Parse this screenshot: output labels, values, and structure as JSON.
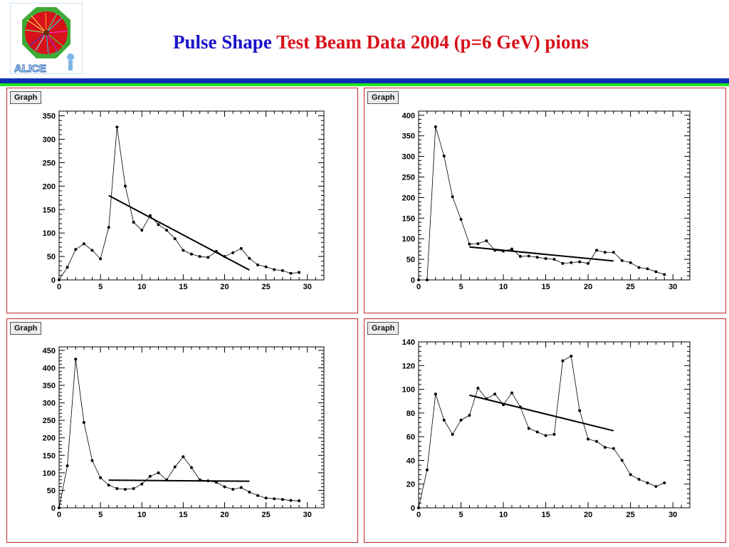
{
  "header": {
    "title_part1": "Pulse Shape",
    "title_part2": "Test Beam Data 2004 (p=6 GeV) pions",
    "logo_text": "ALICE"
  },
  "panels": [
    {
      "button_label": "Graph"
    },
    {
      "button_label": "Graph"
    },
    {
      "button_label": "Graph"
    },
    {
      "button_label": "Graph"
    }
  ],
  "chart_data": [
    {
      "type": "line",
      "title": "",
      "xlim": [
        0,
        32
      ],
      "ylim": [
        0,
        360
      ],
      "xticks": [
        0,
        5,
        10,
        15,
        20,
        25,
        30
      ],
      "yticks": [
        0,
        50,
        100,
        150,
        200,
        250,
        300,
        350
      ],
      "x": [
        0,
        1,
        2,
        3,
        4,
        5,
        6,
        7,
        8,
        9,
        10,
        11,
        12,
        13,
        14,
        15,
        16,
        17,
        18,
        19,
        20,
        21,
        22,
        23,
        24,
        25,
        26,
        27,
        28,
        29
      ],
      "y": [
        0,
        27,
        65,
        77,
        63,
        45,
        112,
        326,
        200,
        123,
        106,
        137,
        118,
        106,
        88,
        63,
        55,
        50,
        48,
        61,
        50,
        58,
        67,
        46,
        32,
        28,
        22,
        20,
        14,
        16
      ],
      "fit": {
        "x": [
          6,
          23
        ],
        "y": [
          180,
          21
        ]
      }
    },
    {
      "type": "line",
      "title": "",
      "xlim": [
        0,
        32
      ],
      "ylim": [
        0,
        410
      ],
      "xticks": [
        0,
        5,
        10,
        15,
        20,
        25,
        30
      ],
      "yticks": [
        0,
        50,
        100,
        150,
        200,
        250,
        300,
        350,
        400
      ],
      "x": [
        0,
        1,
        2,
        3,
        4,
        5,
        6,
        7,
        8,
        9,
        10,
        11,
        12,
        13,
        14,
        15,
        16,
        17,
        18,
        19,
        20,
        21,
        22,
        23,
        24,
        25,
        26,
        27,
        28,
        29
      ],
      "y": [
        0,
        0,
        372,
        301,
        202,
        147,
        87,
        88,
        95,
        72,
        70,
        75,
        57,
        58,
        55,
        52,
        50,
        40,
        42,
        44,
        40,
        72,
        67,
        67,
        47,
        42,
        30,
        27,
        20,
        13
      ],
      "fit": {
        "x": [
          6,
          23
        ],
        "y": [
          80,
          46
        ]
      }
    },
    {
      "type": "line",
      "title": "",
      "xlim": [
        0,
        32
      ],
      "ylim": [
        0,
        460
      ],
      "xticks": [
        0,
        5,
        10,
        15,
        20,
        25,
        30
      ],
      "yticks": [
        0,
        50,
        100,
        150,
        200,
        250,
        300,
        350,
        400,
        450
      ],
      "x": [
        0,
        1,
        2,
        3,
        4,
        5,
        6,
        7,
        8,
        9,
        10,
        11,
        12,
        13,
        14,
        15,
        16,
        17,
        18,
        19,
        20,
        21,
        22,
        23,
        24,
        25,
        26,
        27,
        28,
        29
      ],
      "y": [
        0,
        120,
        425,
        244,
        135,
        86,
        65,
        55,
        53,
        55,
        68,
        90,
        100,
        80,
        117,
        146,
        115,
        80,
        77,
        73,
        60,
        53,
        58,
        45,
        35,
        28,
        26,
        24,
        21,
        20
      ],
      "fit": {
        "x": [
          6,
          23
        ],
        "y": [
          79,
          76
        ]
      }
    },
    {
      "type": "line",
      "title": "",
      "xlim": [
        0,
        32
      ],
      "ylim": [
        0,
        140
      ],
      "xticks": [
        0,
        5,
        10,
        15,
        20,
        25,
        30
      ],
      "yticks": [
        0,
        20,
        40,
        60,
        80,
        100,
        120,
        140
      ],
      "x": [
        0,
        1,
        2,
        3,
        4,
        5,
        6,
        7,
        8,
        9,
        10,
        11,
        12,
        13,
        14,
        15,
        16,
        17,
        18,
        19,
        20,
        21,
        22,
        23,
        24,
        25,
        26,
        27,
        28,
        29
      ],
      "y": [
        0,
        32,
        96,
        74,
        62,
        74,
        78,
        101,
        92,
        96,
        87,
        97,
        85,
        67,
        64,
        61,
        62,
        124,
        128,
        82,
        58,
        56,
        51,
        50,
        40,
        28,
        24,
        21,
        18,
        21
      ],
      "fit": {
        "x": [
          6,
          23
        ],
        "y": [
          95,
          65
        ]
      }
    }
  ]
}
